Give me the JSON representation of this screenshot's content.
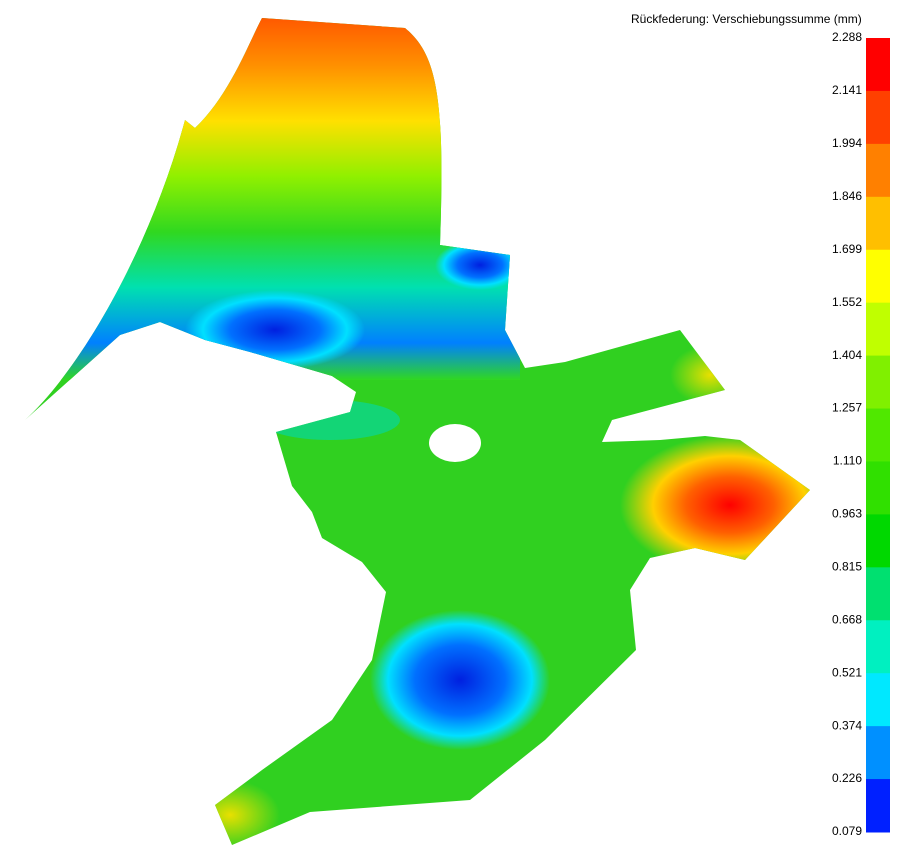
{
  "legend": {
    "title": "Rückfederung: Verschiebungssumme (mm)",
    "labels": [
      "2.288",
      "2.141",
      "1.994",
      "1.846",
      "1.699",
      "1.552",
      "1.404",
      "1.257",
      "1.110",
      "0.963",
      "0.815",
      "0.668",
      "0.521",
      "0.374",
      "0.226",
      "0.079"
    ],
    "colors": [
      "#ff0000",
      "#ff4000",
      "#ff8000",
      "#ffbf00",
      "#ffff00",
      "#c0ff00",
      "#80f000",
      "#50e800",
      "#30e000",
      "#00d800",
      "#00e070",
      "#00f0c0",
      "#00e8ff",
      "#0090ff",
      "#0020ff"
    ]
  }
}
